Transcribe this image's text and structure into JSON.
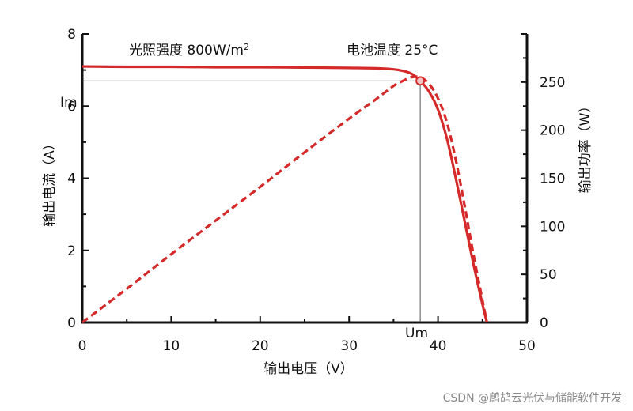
{
  "chart_data": {
    "type": "line",
    "annotations": {
      "irradiance": "光照强度  800W/m",
      "irradiance_sup": "2",
      "temperature": "电池温度  25°C",
      "im": "Im",
      "um": "Um"
    },
    "xlabel": "输出电压（V）",
    "ylabel_left": "输出电流（A）",
    "ylabel_right": "输出功率（W）",
    "xlim": [
      0,
      50
    ],
    "ylim_left": [
      0,
      8
    ],
    "ylim_right": [
      0,
      300
    ],
    "x_ticks": [
      0,
      10,
      20,
      30,
      40,
      50
    ],
    "y_left_ticks": [
      0,
      2,
      4,
      6,
      8
    ],
    "y_right_ticks": [
      0,
      50,
      100,
      150,
      200,
      250
    ],
    "grid": false,
    "series": [
      {
        "axis": "left",
        "style": "solid",
        "color": "#d42a2a",
        "x": [
          0,
          5,
          10,
          15,
          20,
          25,
          30,
          33,
          35,
          36,
          37,
          38,
          39,
          40,
          41,
          42,
          43,
          44,
          45,
          45.5
        ],
        "y": [
          7.1,
          7.09,
          7.09,
          7.08,
          7.08,
          7.07,
          7.06,
          7.05,
          7.02,
          6.98,
          6.9,
          6.7,
          6.4,
          5.9,
          5.1,
          4.0,
          2.8,
          1.6,
          0.5,
          0
        ]
      },
      {
        "axis": "right",
        "style": "dashed",
        "color": "#d42a2a",
        "x": [
          0,
          5,
          10,
          15,
          20,
          25,
          30,
          33,
          35,
          36,
          37,
          38,
          39,
          40,
          41,
          42,
          43,
          44,
          45,
          45.5
        ],
        "y": [
          0,
          35,
          71,
          106,
          141,
          177,
          212,
          232,
          246,
          251,
          255,
          255,
          248,
          233,
          208,
          169,
          121,
          70,
          23,
          0
        ]
      }
    ],
    "mpp": {
      "x": 38,
      "y": 6.7
    },
    "watermark": "CSDN @鹧鸪云光伏与储能软件开发"
  }
}
